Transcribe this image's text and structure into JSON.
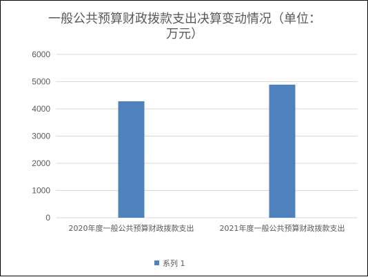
{
  "chart_data": {
    "type": "bar",
    "title_lines": [
      "一般公共预算财政拨款支出决算变动情况（单位：",
      "万元）"
    ],
    "categories": [
      "2020年度一般公共预算财政拨款支出",
      "2021年度一般公共预算财政拨款支出"
    ],
    "series": [
      {
        "name": "系列 1",
        "values": [
          4280,
          4890
        ],
        "color": "#4f81bd"
      }
    ],
    "ylim": [
      0,
      6000
    ],
    "y_ticks": [
      0,
      1000,
      2000,
      3000,
      4000,
      5000,
      6000
    ],
    "grid": true,
    "legend_position": "bottom"
  }
}
